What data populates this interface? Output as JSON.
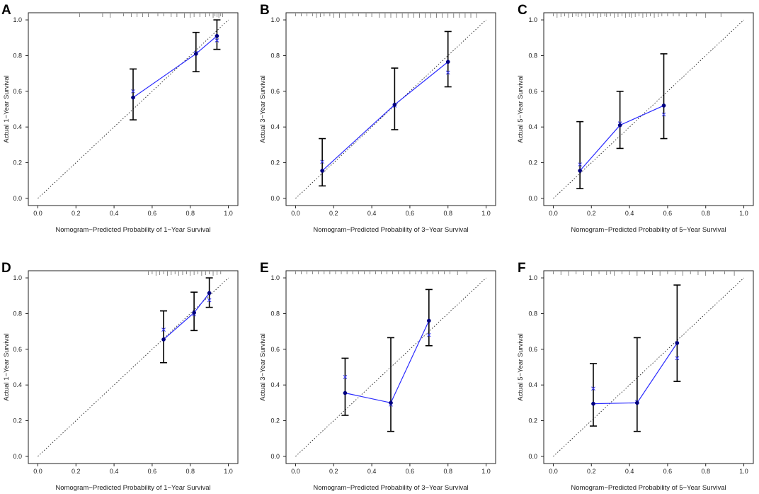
{
  "chart_data": [
    {
      "letter": "A",
      "type": "scatter",
      "title": "",
      "xlabel": "Nomogram−Predicted Probability of 1−Year Survival",
      "ylabel": "Actual 1−Year Survival",
      "xlim": [
        -0.05,
        1.05
      ],
      "ylim": [
        -0.04,
        1.04
      ],
      "ticks": [
        "0.0",
        "0.2",
        "0.4",
        "0.6",
        "0.8",
        "1.0"
      ],
      "points": [
        {
          "x": 0.5,
          "y": 0.565,
          "lo": 0.44,
          "hi": 0.725,
          "corrected": 0.6
        },
        {
          "x": 0.83,
          "y": 0.81,
          "lo": 0.71,
          "hi": 0.93,
          "corrected": 0.815
        },
        {
          "x": 0.94,
          "y": 0.91,
          "lo": 0.835,
          "hi": 1.0,
          "corrected": 0.885
        }
      ],
      "rug": [
        0.22,
        0.34,
        0.38,
        0.45,
        0.49,
        0.52,
        0.55,
        0.58,
        0.63,
        0.66,
        0.7,
        0.73,
        0.77,
        0.8,
        0.82,
        0.85,
        0.88,
        0.9,
        0.92,
        0.93,
        0.94,
        0.95,
        0.96,
        0.97
      ]
    },
    {
      "letter": "B",
      "type": "scatter",
      "title": "",
      "xlabel": "Nomogram−Predicted Probability of 3−Year Survival",
      "ylabel": "Actual 3−Year Survival",
      "xlim": [
        -0.05,
        1.05
      ],
      "ylim": [
        -0.04,
        1.04
      ],
      "ticks": [
        "0.0",
        "0.2",
        "0.4",
        "0.6",
        "0.8",
        "1.0"
      ],
      "points": [
        {
          "x": 0.14,
          "y": 0.155,
          "lo": 0.07,
          "hi": 0.335,
          "corrected": 0.205
        },
        {
          "x": 0.52,
          "y": 0.525,
          "lo": 0.385,
          "hi": 0.73,
          "corrected": 0.52
        },
        {
          "x": 0.8,
          "y": 0.765,
          "lo": 0.625,
          "hi": 0.935,
          "corrected": 0.705
        }
      ],
      "rug": [
        0.0,
        0.03,
        0.06,
        0.09,
        0.11,
        0.13,
        0.15,
        0.18,
        0.2,
        0.23,
        0.26,
        0.3,
        0.33,
        0.37,
        0.4,
        0.44,
        0.47,
        0.5,
        0.53,
        0.56,
        0.59,
        0.62,
        0.65,
        0.68,
        0.71,
        0.74,
        0.77,
        0.8,
        0.83,
        0.86,
        0.89,
        0.92,
        0.95
      ]
    },
    {
      "letter": "C",
      "type": "scatter",
      "title": "",
      "xlabel": "Nomogram−Predicted Probability of 5−Year Survival",
      "ylabel": "Actual 5−Year Survival",
      "xlim": [
        -0.05,
        1.05
      ],
      "ylim": [
        -0.04,
        1.04
      ],
      "ticks": [
        "0.0",
        "0.2",
        "0.4",
        "0.6",
        "0.8",
        "1.0"
      ],
      "points": [
        {
          "x": 0.14,
          "y": 0.155,
          "lo": 0.055,
          "hi": 0.43,
          "corrected": 0.19
        },
        {
          "x": 0.35,
          "y": 0.41,
          "lo": 0.28,
          "hi": 0.6,
          "corrected": 0.42
        },
        {
          "x": 0.58,
          "y": 0.52,
          "lo": 0.335,
          "hi": 0.81,
          "corrected": 0.47
        }
      ],
      "rug": [
        0.0,
        0.02,
        0.04,
        0.06,
        0.08,
        0.1,
        0.12,
        0.13,
        0.15,
        0.17,
        0.19,
        0.21,
        0.23,
        0.25,
        0.27,
        0.28,
        0.3,
        0.32,
        0.34,
        0.36,
        0.38,
        0.4,
        0.41,
        0.43,
        0.45,
        0.47,
        0.49,
        0.51,
        0.53,
        0.55,
        0.57,
        0.6,
        0.63,
        0.66,
        0.7,
        0.75,
        0.8,
        0.88
      ]
    },
    {
      "letter": "D",
      "type": "scatter",
      "title": "",
      "xlabel": "Nomogram−Predicted Probability of 1−Year Survival",
      "ylabel": "Actual 1−Year Survival",
      "xlim": [
        -0.05,
        1.05
      ],
      "ylim": [
        -0.04,
        1.04
      ],
      "ticks": [
        "0.0",
        "0.2",
        "0.4",
        "0.6",
        "0.8",
        "1.0"
      ],
      "points": [
        {
          "x": 0.66,
          "y": 0.655,
          "lo": 0.525,
          "hi": 0.815,
          "corrected": 0.71
        },
        {
          "x": 0.82,
          "y": 0.805,
          "lo": 0.705,
          "hi": 0.92,
          "corrected": 0.795
        },
        {
          "x": 0.9,
          "y": 0.915,
          "lo": 0.835,
          "hi": 1.0,
          "corrected": 0.875
        }
      ],
      "rug": [
        0.58,
        0.6,
        0.62,
        0.64,
        0.66,
        0.68,
        0.7,
        0.72,
        0.74,
        0.76,
        0.78,
        0.8,
        0.82,
        0.84,
        0.86,
        0.88,
        0.9,
        0.92,
        0.94,
        0.96
      ]
    },
    {
      "letter": "E",
      "type": "scatter",
      "title": "",
      "xlabel": "Nomogram−Predicted Probability of 3−Year Survival",
      "ylabel": "Actual 3−Year Survival",
      "xlim": [
        -0.05,
        1.05
      ],
      "ylim": [
        -0.04,
        1.04
      ],
      "ticks": [
        "0.0",
        "0.2",
        "0.4",
        "0.6",
        "0.8",
        "1.0"
      ],
      "points": [
        {
          "x": 0.26,
          "y": 0.355,
          "lo": 0.23,
          "hi": 0.55,
          "corrected": 0.445
        },
        {
          "x": 0.5,
          "y": 0.3,
          "lo": 0.14,
          "hi": 0.665,
          "corrected": 0.29
        },
        {
          "x": 0.7,
          "y": 0.76,
          "lo": 0.62,
          "hi": 0.935,
          "corrected": 0.68
        }
      ],
      "rug": [
        0.0,
        0.03,
        0.06,
        0.09,
        0.12,
        0.15,
        0.18,
        0.21,
        0.24,
        0.27,
        0.3,
        0.33,
        0.36,
        0.39,
        0.42,
        0.45,
        0.48,
        0.51,
        0.54,
        0.57,
        0.6,
        0.63,
        0.66,
        0.69,
        0.72,
        0.75,
        0.78,
        0.81,
        0.85,
        0.9
      ]
    },
    {
      "letter": "F",
      "type": "scatter",
      "title": "",
      "xlabel": "Nomogram−Predicted Probability of 5−Year Survival",
      "ylabel": "Actual 5−Year Survival",
      "xlim": [
        -0.05,
        1.05
      ],
      "ylim": [
        -0.04,
        1.04
      ],
      "ticks": [
        "0.0",
        "0.2",
        "0.4",
        "0.6",
        "0.8",
        "1.0"
      ],
      "points": [
        {
          "x": 0.21,
          "y": 0.295,
          "lo": 0.17,
          "hi": 0.52,
          "corrected": 0.38
        },
        {
          "x": 0.44,
          "y": 0.3,
          "lo": 0.14,
          "hi": 0.665,
          "corrected": 0.305
        },
        {
          "x": 0.65,
          "y": 0.635,
          "lo": 0.42,
          "hi": 0.96,
          "corrected": 0.55
        }
      ],
      "rug": [
        0.0,
        0.04,
        0.08,
        0.12,
        0.16,
        0.2,
        0.24,
        0.28,
        0.3,
        0.32,
        0.36,
        0.4,
        0.44,
        0.48,
        0.52,
        0.56,
        0.6,
        0.64,
        0.68,
        0.72,
        0.76,
        0.8,
        0.84,
        0.9,
        0.95
      ]
    }
  ]
}
